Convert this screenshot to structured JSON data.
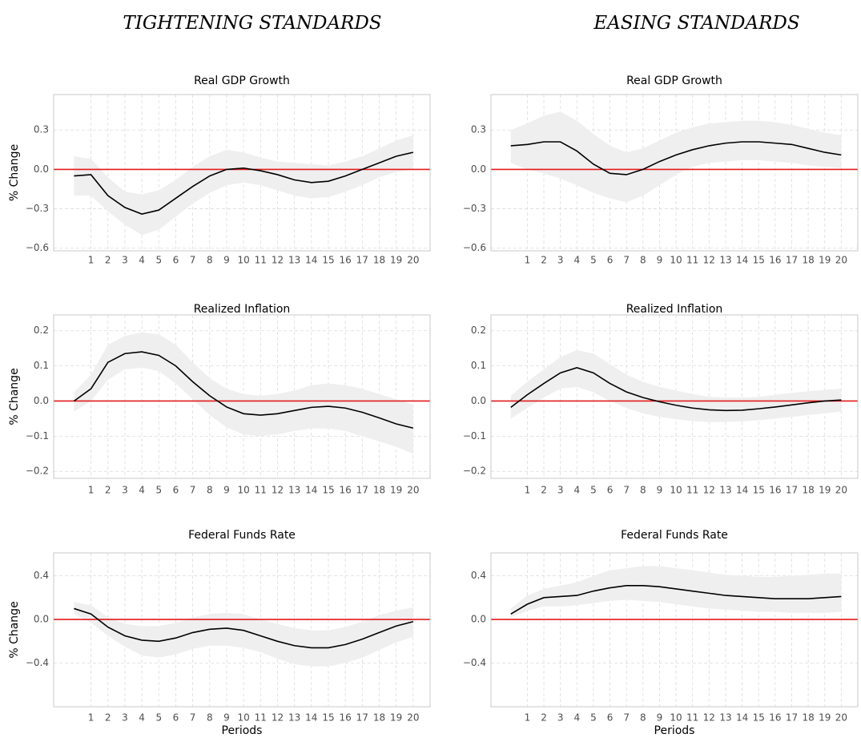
{
  "column_titles": [
    "TIGHTENING STANDARDS",
    "EASING STANDARDS"
  ],
  "chart_data": [
    {
      "type": "line",
      "title": "Real GDP Growth",
      "ylabel": "% Change",
      "x": [
        0,
        1,
        2,
        3,
        4,
        5,
        6,
        7,
        8,
        9,
        10,
        11,
        12,
        13,
        14,
        15,
        16,
        17,
        18,
        19,
        20
      ],
      "values": [
        -0.05,
        -0.04,
        -0.2,
        -0.29,
        -0.34,
        -0.31,
        -0.22,
        -0.13,
        -0.05,
        0.0,
        0.01,
        -0.01,
        -0.04,
        -0.08,
        -0.1,
        -0.09,
        -0.05,
        0.0,
        0.05,
        0.1,
        0.13
      ],
      "lower": [
        -0.2,
        -0.2,
        -0.32,
        -0.42,
        -0.5,
        -0.46,
        -0.36,
        -0.26,
        -0.18,
        -0.12,
        -0.1,
        -0.12,
        -0.16,
        -0.2,
        -0.22,
        -0.21,
        -0.17,
        -0.12,
        -0.06,
        -0.02,
        0.0
      ],
      "upper": [
        0.1,
        0.08,
        -0.06,
        -0.17,
        -0.19,
        -0.16,
        -0.08,
        0.02,
        0.1,
        0.15,
        0.13,
        0.09,
        0.06,
        0.05,
        0.04,
        0.03,
        0.06,
        0.1,
        0.16,
        0.22,
        0.26
      ],
      "color": "#000000",
      "band_color": "#efefef",
      "reference_line": {
        "value": 0,
        "color": "#e41a1c"
      },
      "xlim": [
        -1.2,
        21
      ],
      "xticks": [
        1,
        2,
        3,
        4,
        5,
        6,
        7,
        8,
        9,
        10,
        11,
        12,
        13,
        14,
        15,
        16,
        17,
        18,
        19,
        20
      ],
      "ylim": [
        -0.62,
        0.57
      ],
      "yticks": [
        {
          "value": -0.6,
          "label": "−0.6"
        },
        {
          "value": -0.3,
          "label": "−0.3"
        },
        {
          "value": 0,
          "label": "0.0"
        },
        0.3
      ],
      "grid": true
    },
    {
      "type": "line",
      "title": "Real GDP Growth",
      "x": [
        0,
        1,
        2,
        3,
        4,
        5,
        6,
        7,
        8,
        9,
        10,
        11,
        12,
        13,
        14,
        15,
        16,
        17,
        18,
        19,
        20
      ],
      "values": [
        0.18,
        0.19,
        0.21,
        0.21,
        0.14,
        0.04,
        -0.03,
        -0.04,
        0.0,
        0.06,
        0.11,
        0.15,
        0.18,
        0.2,
        0.21,
        0.21,
        0.2,
        0.19,
        0.16,
        0.13,
        0.11
      ],
      "lower": [
        0.05,
        0.0,
        -0.03,
        -0.07,
        -0.12,
        -0.18,
        -0.22,
        -0.25,
        -0.2,
        -0.12,
        -0.04,
        0.02,
        0.05,
        0.06,
        0.07,
        0.07,
        0.06,
        0.05,
        0.03,
        0.02,
        0.01
      ],
      "upper": [
        0.3,
        0.35,
        0.41,
        0.44,
        0.37,
        0.27,
        0.18,
        0.13,
        0.16,
        0.22,
        0.28,
        0.32,
        0.35,
        0.36,
        0.37,
        0.37,
        0.36,
        0.34,
        0.31,
        0.28,
        0.26
      ],
      "color": "#000000",
      "band_color": "#efefef",
      "reference_line": {
        "value": 0,
        "color": "#e41a1c"
      },
      "xlim": [
        -1.2,
        21
      ],
      "xticks": [
        1,
        2,
        3,
        4,
        5,
        6,
        7,
        8,
        9,
        10,
        11,
        12,
        13,
        14,
        15,
        16,
        17,
        18,
        19,
        20
      ],
      "ylim": [
        -0.62,
        0.57
      ],
      "yticks": [
        {
          "value": -0.6,
          "label": "−0.6"
        },
        {
          "value": -0.3,
          "label": "−0.3"
        },
        {
          "value": 0,
          "label": "0.0"
        },
        0.3
      ],
      "grid": true
    },
    {
      "type": "line",
      "title": "Realized Inflation",
      "ylabel": "% Change",
      "x": [
        0,
        1,
        2,
        3,
        4,
        5,
        6,
        7,
        8,
        9,
        10,
        11,
        12,
        13,
        14,
        15,
        16,
        17,
        18,
        19,
        20
      ],
      "values": [
        0.0,
        0.035,
        0.11,
        0.135,
        0.14,
        0.13,
        0.1,
        0.055,
        0.015,
        -0.017,
        -0.036,
        -0.04,
        -0.036,
        -0.027,
        -0.018,
        -0.015,
        -0.02,
        -0.032,
        -0.048,
        -0.065,
        -0.077
      ],
      "lower": [
        -0.03,
        0.0,
        0.06,
        0.09,
        0.095,
        0.085,
        0.05,
        0.005,
        -0.04,
        -0.075,
        -0.095,
        -0.1,
        -0.095,
        -0.085,
        -0.078,
        -0.078,
        -0.085,
        -0.1,
        -0.115,
        -0.13,
        -0.15
      ],
      "upper": [
        0.025,
        0.075,
        0.16,
        0.185,
        0.195,
        0.19,
        0.16,
        0.11,
        0.065,
        0.035,
        0.02,
        0.015,
        0.02,
        0.03,
        0.045,
        0.05,
        0.045,
        0.035,
        0.02,
        0.005,
        -0.01
      ],
      "color": "#000000",
      "band_color": "#efefef",
      "reference_line": {
        "value": 0,
        "color": "#e41a1c"
      },
      "xlim": [
        -1.2,
        21
      ],
      "xticks": [
        1,
        2,
        3,
        4,
        5,
        6,
        7,
        8,
        9,
        10,
        11,
        12,
        13,
        14,
        15,
        16,
        17,
        18,
        19,
        20
      ],
      "ylim": [
        -0.22,
        0.245
      ],
      "yticks": [
        {
          "value": -0.2,
          "label": "−0.2"
        },
        {
          "value": -0.1,
          "label": "−0.1"
        },
        {
          "value": 0,
          "label": "0.0"
        },
        0.1,
        0.2
      ],
      "grid": true
    },
    {
      "type": "line",
      "title": "Realized Inflation",
      "x": [
        0,
        1,
        2,
        3,
        4,
        5,
        6,
        7,
        8,
        9,
        10,
        11,
        12,
        13,
        14,
        15,
        16,
        17,
        18,
        19,
        20
      ],
      "values": [
        -0.018,
        0.018,
        0.05,
        0.08,
        0.095,
        0.08,
        0.05,
        0.026,
        0.01,
        -0.002,
        -0.012,
        -0.02,
        -0.025,
        -0.027,
        -0.026,
        -0.022,
        -0.017,
        -0.011,
        -0.005,
        0.0,
        0.003
      ],
      "lower": [
        -0.05,
        -0.02,
        0.01,
        0.035,
        0.04,
        0.025,
        0.0,
        -0.02,
        -0.035,
        -0.045,
        -0.052,
        -0.057,
        -0.06,
        -0.06,
        -0.058,
        -0.055,
        -0.05,
        -0.045,
        -0.04,
        -0.035,
        -0.03
      ],
      "upper": [
        0.015,
        0.055,
        0.09,
        0.125,
        0.145,
        0.135,
        0.105,
        0.075,
        0.055,
        0.04,
        0.03,
        0.02,
        0.012,
        0.01,
        0.01,
        0.012,
        0.018,
        0.023,
        0.028,
        0.032,
        0.035
      ],
      "color": "#000000",
      "band_color": "#efefef",
      "reference_line": {
        "value": 0,
        "color": "#e41a1c"
      },
      "xlim": [
        -1.2,
        21
      ],
      "xticks": [
        1,
        2,
        3,
        4,
        5,
        6,
        7,
        8,
        9,
        10,
        11,
        12,
        13,
        14,
        15,
        16,
        17,
        18,
        19,
        20
      ],
      "ylim": [
        -0.22,
        0.245
      ],
      "yticks": [
        {
          "value": -0.2,
          "label": "−0.2"
        },
        {
          "value": -0.1,
          "label": "−0.1"
        },
        {
          "value": 0,
          "label": "0.0"
        },
        0.1,
        0.2
      ],
      "grid": true
    },
    {
      "type": "line",
      "title": "Federal Funds Rate",
      "ylabel": "% Change",
      "xlabel": "Periods",
      "x": [
        0,
        1,
        2,
        3,
        4,
        5,
        6,
        7,
        8,
        9,
        10,
        11,
        12,
        13,
        14,
        15,
        16,
        17,
        18,
        19,
        20
      ],
      "values": [
        0.1,
        0.05,
        -0.07,
        -0.15,
        -0.19,
        -0.2,
        -0.17,
        -0.12,
        -0.09,
        -0.08,
        -0.1,
        -0.15,
        -0.2,
        -0.24,
        -0.26,
        -0.26,
        -0.23,
        -0.18,
        -0.12,
        -0.06,
        -0.02
      ],
      "lower": [
        0.05,
        -0.03,
        -0.15,
        -0.25,
        -0.33,
        -0.35,
        -0.32,
        -0.27,
        -0.24,
        -0.24,
        -0.26,
        -0.3,
        -0.36,
        -0.41,
        -0.43,
        -0.43,
        -0.4,
        -0.35,
        -0.28,
        -0.21,
        -0.16
      ],
      "upper": [
        0.16,
        0.13,
        0.02,
        -0.04,
        -0.06,
        -0.06,
        -0.03,
        0.02,
        0.05,
        0.06,
        0.05,
        0.0,
        -0.04,
        -0.08,
        -0.1,
        -0.1,
        -0.07,
        -0.02,
        0.04,
        0.08,
        0.11
      ],
      "color": "#000000",
      "band_color": "#efefef",
      "reference_line": {
        "value": 0,
        "color": "#e41a1c"
      },
      "xlim": [
        -1.2,
        21
      ],
      "xticks": [
        1,
        2,
        3,
        4,
        5,
        6,
        7,
        8,
        9,
        10,
        11,
        12,
        13,
        14,
        15,
        16,
        17,
        18,
        19,
        20
      ],
      "ylim": [
        -0.8,
        0.61
      ],
      "yticks": [
        {
          "value": -0.4,
          "label": "−0.4"
        },
        {
          "value": 0,
          "label": "0.0"
        },
        0.4
      ],
      "grid": true
    },
    {
      "type": "line",
      "title": "Federal Funds Rate",
      "xlabel": "Periods",
      "x": [
        0,
        1,
        2,
        3,
        4,
        5,
        6,
        7,
        8,
        9,
        10,
        11,
        12,
        13,
        14,
        15,
        16,
        17,
        18,
        19,
        20
      ],
      "values": [
        0.05,
        0.14,
        0.2,
        0.21,
        0.22,
        0.26,
        0.29,
        0.31,
        0.31,
        0.3,
        0.28,
        0.26,
        0.24,
        0.22,
        0.21,
        0.2,
        0.19,
        0.19,
        0.19,
        0.2,
        0.21
      ],
      "lower": [
        0.02,
        0.08,
        0.12,
        0.12,
        0.13,
        0.15,
        0.17,
        0.18,
        0.17,
        0.16,
        0.14,
        0.12,
        0.1,
        0.09,
        0.08,
        0.07,
        0.07,
        0.06,
        0.06,
        0.06,
        0.07
      ],
      "upper": [
        0.1,
        0.22,
        0.28,
        0.31,
        0.34,
        0.4,
        0.45,
        0.47,
        0.49,
        0.49,
        0.47,
        0.45,
        0.43,
        0.41,
        0.4,
        0.39,
        0.39,
        0.4,
        0.41,
        0.42,
        0.42
      ],
      "color": "#000000",
      "band_color": "#efefef",
      "reference_line": {
        "value": 0,
        "color": "#e41a1c"
      },
      "xlim": [
        -1.2,
        21
      ],
      "xticks": [
        1,
        2,
        3,
        4,
        5,
        6,
        7,
        8,
        9,
        10,
        11,
        12,
        13,
        14,
        15,
        16,
        17,
        18,
        19,
        20
      ],
      "ylim": [
        -0.8,
        0.61
      ],
      "yticks": [
        {
          "value": -0.4,
          "label": "−0.4"
        },
        {
          "value": 0,
          "label": "0.0"
        },
        0.4
      ],
      "grid": true
    }
  ]
}
